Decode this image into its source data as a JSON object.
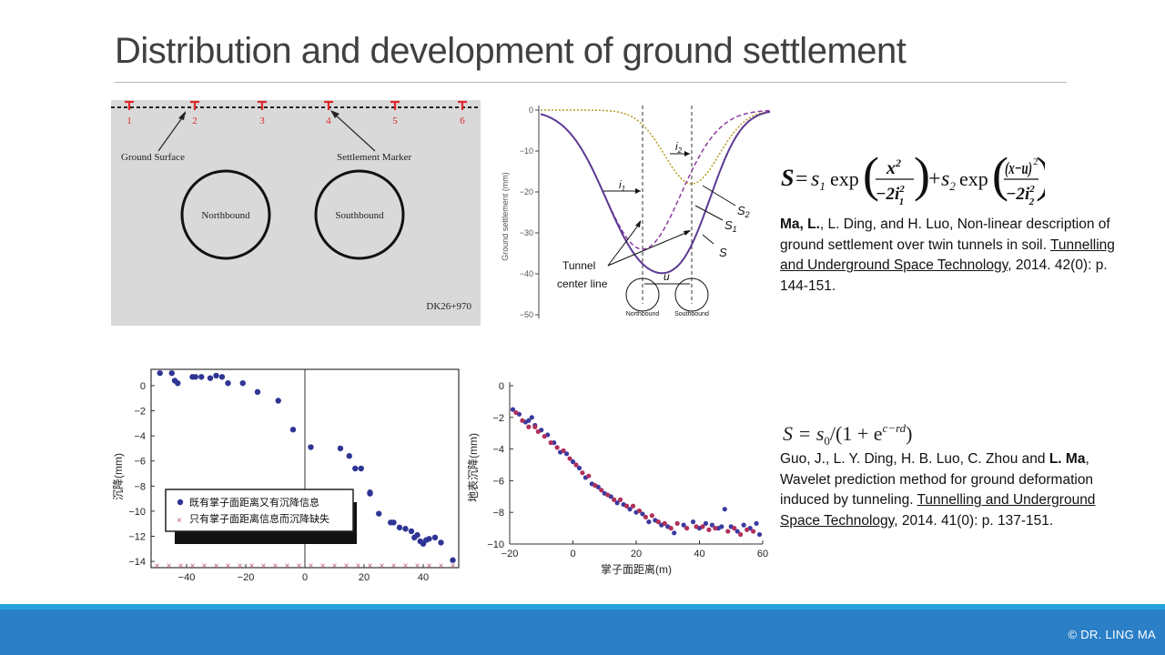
{
  "slide": {
    "title": "Distribution and development of ground settlement",
    "copyright": "© DR. LING MA"
  },
  "fig_tunnel_section": {
    "marker_numbers": [
      "1",
      "2",
      "3",
      "4",
      "5",
      "6"
    ],
    "ground_surface_label": "Ground Surface",
    "settlement_marker_label": "Settlement Marker",
    "northbound_label": "Northbound",
    "southbound_label": "Southbound",
    "station_label": "DK26+970",
    "colors": {
      "background": "#d9d9d9",
      "marker": "#e0262a"
    }
  },
  "fig_settlement_curves": {
    "ylabel": "Ground settlement (mm)",
    "yticks": [
      "0",
      "−10",
      "−20",
      "−30",
      "−40",
      "−50"
    ],
    "labels": {
      "i1": "i",
      "i1_sub": "1",
      "i2": "i",
      "i2_sub": "2",
      "s2": "S",
      "s2_sub": "2",
      "s1": "S",
      "s1_sub": "1",
      "s": "S",
      "u": "u",
      "tunnel_center_line_1": "Tunnel",
      "tunnel_center_line_2": "center line",
      "northbound": "Northbound",
      "southbound": "Southbound"
    },
    "chart_data": {
      "type": "line",
      "ylim": [
        -50,
        0
      ],
      "series": [
        {
          "name": "S",
          "color": "#5c3a92",
          "style": "solid"
        },
        {
          "name": "S1",
          "color": "#8c3aa0",
          "style": "dashed"
        },
        {
          "name": "S2",
          "color": "#b59a20",
          "style": "dotted"
        }
      ]
    }
  },
  "formula_1": {
    "S": "S",
    "eq": "=",
    "s1": "s",
    "s1_sub": "1",
    "exp": "exp",
    "num1": "x",
    "num1_sup": "2",
    "den1": "−2i",
    "den1_sup": "2",
    "den1_sub": "1",
    "plus": "+",
    "s2": "s",
    "s2_sub": "2",
    "num2": "(x−u)",
    "num2_sup": "2",
    "den2": "−2i",
    "den2_sup": "2",
    "den2_sub": "2"
  },
  "reference_1": {
    "author_bold": "Ma, L.",
    "authors_rest": ", L. Ding, and H. Luo, Non-linear description of ground settlement over twin tunnels in soil. ",
    "journal": "Tunnelling and Underground Space Technology",
    "tail": ", 2014. 42(0): p. 144-151."
  },
  "fig_chinese_scatter": {
    "ylabel": "沉降(mm)",
    "xticks": [
      "−40",
      "−20",
      "0",
      "20",
      "40"
    ],
    "yticks": [
      "0",
      "−2",
      "−4",
      "−6",
      "−8",
      "−10",
      "−12",
      "−14"
    ],
    "legend": [
      "既有掌子面距离又有沉降信息",
      "只有掌子面距离信息而沉降缺失"
    ],
    "chart_data": {
      "type": "scatter",
      "xlim": [
        -52,
        52
      ],
      "ylim": [
        -14.5,
        1.3
      ],
      "series": [
        {
          "name": "既有掌子面距离又有沉降信息",
          "marker": "circle",
          "color": "#2f3593",
          "x": [
            -49,
            -45,
            -44,
            -43,
            -38,
            -37,
            -35,
            -32,
            -30,
            -28,
            -26,
            -21,
            -16,
            -9,
            -4,
            2,
            12,
            15,
            17,
            19,
            22,
            22,
            25,
            29,
            30,
            32,
            34,
            36,
            37,
            38,
            39,
            40,
            41,
            42,
            44,
            46,
            50
          ],
          "y": [
            1.0,
            1.0,
            0.4,
            0.2,
            0.7,
            0.7,
            0.7,
            0.6,
            0.8,
            0.7,
            0.2,
            0.2,
            -0.5,
            -1.2,
            -3.5,
            -4.9,
            -5.0,
            -5.6,
            -6.6,
            -6.6,
            -8.5,
            -8.6,
            -10.2,
            -10.9,
            -10.9,
            -11.3,
            -11.4,
            -11.6,
            -12.1,
            -11.9,
            -12.4,
            -12.6,
            -12.3,
            -12.2,
            -12.1,
            -12.5,
            -13.9
          ]
        },
        {
          "name": "只有掌子面距离信息而沉降缺失",
          "marker": "x",
          "color": "#d98aa0",
          "x": [
            -50,
            -46,
            -42,
            -38,
            -34,
            -30,
            -26,
            -22,
            -18,
            -14,
            -10,
            -6,
            -2,
            2,
            6,
            10,
            14,
            18,
            22,
            26,
            30,
            34,
            38,
            42,
            46,
            50
          ],
          "y": [
            -14.3,
            -14.3,
            -14.3,
            -14.3,
            -14.3,
            -14.3,
            -14.3,
            -14.3,
            -14.3,
            -14.3,
            -14.3,
            -14.3,
            -14.3,
            -14.3,
            -14.3,
            -14.3,
            -14.3,
            -14.3,
            -14.3,
            -14.3,
            -14.3,
            -14.3,
            -14.3,
            -14.3,
            -14.3,
            -14.3
          ]
        }
      ]
    }
  },
  "fig_prediction_scatter": {
    "ylabel": "地表沉降(mm)",
    "xlabel": "掌子面距离(m)",
    "xticks": [
      "−20",
      "0",
      "20",
      "40",
      "60"
    ],
    "yticks": [
      "0",
      "−2",
      "−4",
      "−6",
      "−8",
      "−10"
    ],
    "chart_data": {
      "type": "scatter",
      "xlim": [
        -20,
        60
      ],
      "ylim": [
        -10,
        0
      ],
      "series": [
        {
          "name": "",
          "color": "#3a3aa0",
          "x": [
            -19,
            -17,
            -15,
            -14,
            -13,
            -12,
            -10,
            -8,
            -6,
            -4,
            -2,
            0,
            2,
            4,
            6,
            8,
            10,
            12,
            14,
            16,
            18,
            20,
            22,
            24,
            26,
            28,
            30,
            32,
            35,
            38,
            40,
            42,
            44,
            46,
            47,
            48,
            50,
            52,
            54,
            56,
            58,
            59
          ],
          "y": [
            -1.5,
            -1.8,
            -2.3,
            -2.2,
            -2.0,
            -2.5,
            -2.8,
            -3.1,
            -3.6,
            -4.2,
            -4.3,
            -4.8,
            -5.2,
            -5.8,
            -6.2,
            -6.4,
            -6.8,
            -7.0,
            -7.4,
            -7.5,
            -7.8,
            -8.0,
            -8.1,
            -8.6,
            -8.5,
            -8.8,
            -8.9,
            -9.3,
            -8.8,
            -8.6,
            -9.0,
            -8.7,
            -8.8,
            -9.0,
            -8.9,
            -7.8,
            -8.9,
            -9.2,
            -8.8,
            -9.0,
            -8.7,
            -9.4
          ]
        },
        {
          "name": "",
          "color": "#b0305a",
          "x": [
            -18,
            -16,
            -14,
            -12,
            -11,
            -9,
            -7,
            -5,
            -3,
            -1,
            1,
            3,
            5,
            7,
            9,
            11,
            13,
            15,
            17,
            19,
            21,
            23,
            25,
            27,
            29,
            31,
            33,
            36,
            39,
            41,
            43,
            45,
            49,
            51,
            53,
            55,
            57
          ],
          "y": [
            -1.7,
            -2.2,
            -2.6,
            -2.6,
            -2.9,
            -3.2,
            -3.6,
            -3.9,
            -4.1,
            -4.6,
            -5.0,
            -5.5,
            -5.7,
            -6.3,
            -6.6,
            -6.9,
            -7.2,
            -7.2,
            -7.6,
            -7.6,
            -7.9,
            -8.3,
            -8.2,
            -8.6,
            -8.7,
            -9.0,
            -8.7,
            -9.0,
            -8.9,
            -8.9,
            -9.1,
            -9.0,
            -9.2,
            -9.0,
            -9.4,
            -9.1,
            -9.2
          ]
        }
      ]
    }
  },
  "formula_2": {
    "text": "S = s",
    "sub": "0",
    "rest": "/(1 + e",
    "sup": "c−rd",
    "close": ")"
  },
  "reference_2": {
    "authors_pre": "Guo, J., L. Y. Ding, H. B. Luo, C. Zhou and ",
    "author_bold": "L. Ma",
    "title_rest": ", Wavelet prediction method for ground deformation induced by tunneling. ",
    "journal": "Tunnelling and Underground Space Technology",
    "tail": ", 2014. 41(0): p. 137-151."
  }
}
